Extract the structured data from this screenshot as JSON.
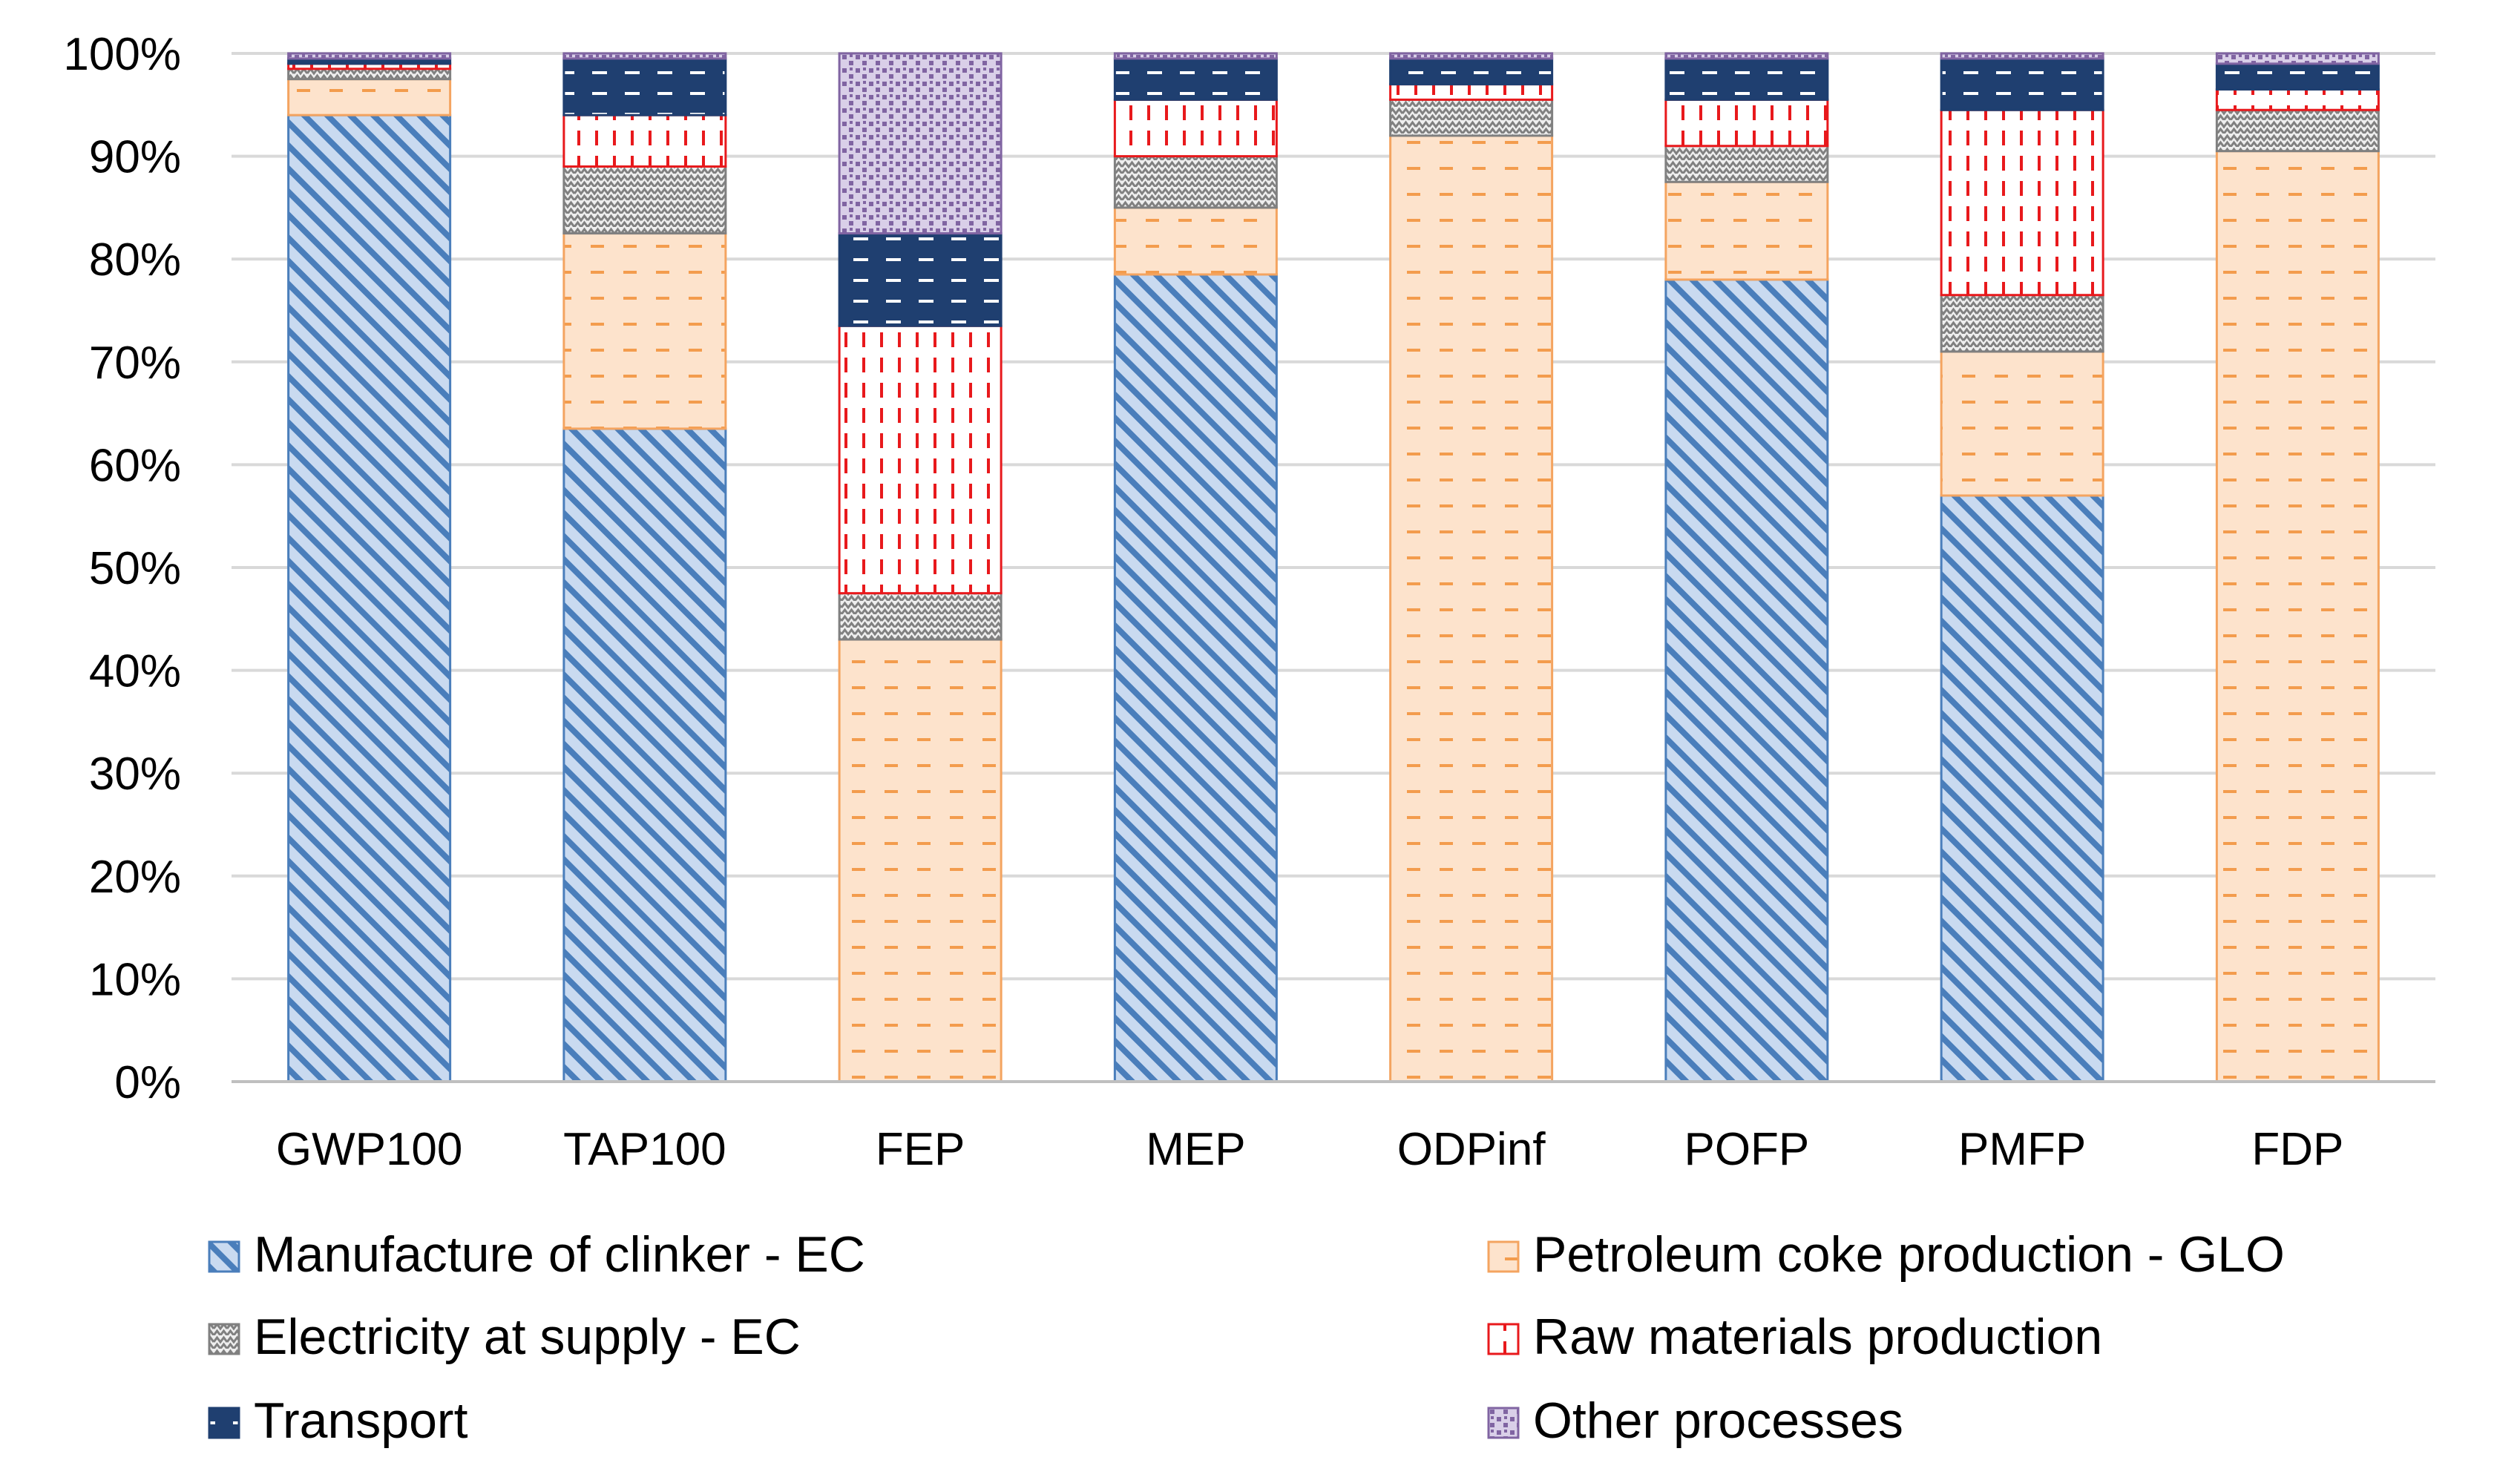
{
  "chart_data": {
    "type": "bar",
    "stacked": true,
    "categories": [
      "GWP100",
      "TAP100",
      "FEP",
      "MEP",
      "ODPinf",
      "POFP",
      "PMFP",
      "FDP"
    ],
    "yticks": [
      "0%",
      "10%",
      "20%",
      "30%",
      "40%",
      "50%",
      "60%",
      "70%",
      "80%",
      "90%",
      "100%"
    ],
    "ylim": [
      0,
      100
    ],
    "grid": true,
    "legend_position": "bottom",
    "series": [
      {
        "name": "Manufacture of clinker - EC",
        "key": "clinker",
        "color": "#4a7ebb",
        "values": [
          94,
          63.5,
          0,
          78.5,
          0,
          78,
          57,
          0
        ]
      },
      {
        "name": "Petroleum coke production - GLO",
        "key": "petcoke",
        "color": "#f4a460",
        "values": [
          3.5,
          19,
          43,
          6.5,
          92,
          9.5,
          14,
          90.5
        ]
      },
      {
        "name": "Electricity at supply - EC",
        "key": "electricity",
        "color": "#808080",
        "values": [
          1,
          6.5,
          4.5,
          5,
          3.5,
          3.5,
          5.5,
          4
        ]
      },
      {
        "name": "Raw materials production",
        "key": "rawmat",
        "color": "#e8191c",
        "values": [
          0.5,
          5,
          26,
          5.5,
          1.5,
          4.5,
          18,
          2
        ]
      },
      {
        "name": "Transport",
        "key": "transport",
        "color": "#1f3f70",
        "values": [
          0.5,
          5.5,
          9,
          4,
          2.5,
          4,
          5,
          2.5
        ]
      },
      {
        "name": "Other processes",
        "key": "other",
        "color": "#8064a2",
        "values": [
          0.5,
          0.5,
          17.5,
          0.5,
          0.5,
          0.5,
          0.5,
          1
        ]
      }
    ]
  }
}
